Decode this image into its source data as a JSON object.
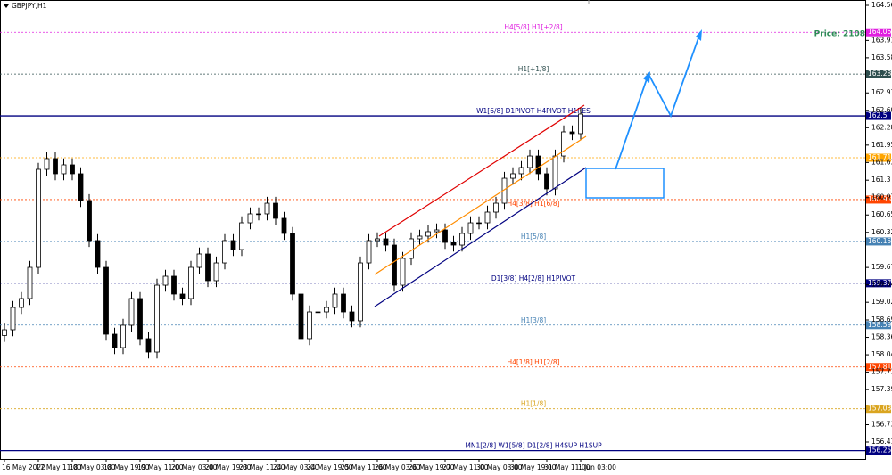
{
  "chart_data": {
    "type": "candlestick",
    "symbol": "GBPJPY,H1",
    "price_note": "Price: 2108",
    "ylim": [
      156.094,
      164.665
    ],
    "yticks": [
      164.565,
      163.91,
      163.585,
      162.93,
      162.605,
      162.28,
      161.955,
      161.63,
      161.3,
      160.975,
      160.65,
      160.325,
      159.67,
      159.345,
      159.02,
      158.69,
      158.365,
      158.04,
      157.715,
      157.39,
      156.735,
      156.41
    ],
    "x_labels": [
      "16 May 2022",
      "17 May 11:00",
      "18 May 03:00",
      "18 May 19:00",
      "19 May 11:00",
      "20 May 03:00",
      "20 May 19:00",
      "23 May 11:00",
      "24 May 03:00",
      "24 May 19:00",
      "25 May 11:00",
      "26 May 03:00",
      "26 May 19:00",
      "27 May 11:00",
      "30 May 03:00",
      "30 May 19:00",
      "31 May 11:00",
      "1 Jun 03:00"
    ],
    "candles": [
      [
        158.4,
        158.627,
        158.28,
        158.507
      ],
      [
        158.507,
        159.043,
        158.387,
        158.923
      ],
      [
        158.923,
        159.21,
        158.803,
        159.09
      ],
      [
        159.09,
        159.792,
        158.97,
        159.672
      ],
      [
        159.672,
        161.623,
        159.552,
        161.503
      ],
      [
        161.503,
        161.823,
        161.383,
        161.703
      ],
      [
        161.703,
        161.823,
        161.3,
        161.42
      ],
      [
        161.42,
        161.706,
        161.3,
        161.586
      ],
      [
        161.586,
        161.706,
        161.3,
        161.42
      ],
      [
        161.42,
        161.54,
        160.8,
        160.92
      ],
      [
        160.92,
        161.04,
        160.052,
        160.172
      ],
      [
        160.172,
        160.292,
        159.552,
        159.672
      ],
      [
        159.672,
        159.792,
        158.304,
        158.424
      ],
      [
        158.424,
        158.544,
        158.054,
        158.174
      ],
      [
        158.174,
        158.711,
        158.054,
        158.591
      ],
      [
        158.591,
        159.21,
        158.471,
        159.09
      ],
      [
        159.09,
        159.21,
        158.221,
        158.341
      ],
      [
        158.341,
        158.461,
        157.971,
        158.091
      ],
      [
        158.091,
        159.459,
        157.971,
        159.339
      ],
      [
        159.339,
        159.626,
        159.219,
        159.506
      ],
      [
        159.506,
        159.626,
        159.053,
        159.173
      ],
      [
        159.173,
        159.293,
        158.97,
        159.09
      ],
      [
        159.09,
        159.792,
        158.97,
        159.672
      ],
      [
        159.672,
        160.042,
        159.552,
        159.922
      ],
      [
        159.922,
        160.042,
        159.303,
        159.423
      ],
      [
        159.423,
        159.875,
        159.303,
        159.755
      ],
      [
        159.755,
        160.292,
        159.635,
        160.172
      ],
      [
        160.172,
        160.292,
        159.885,
        160.005
      ],
      [
        160.005,
        160.624,
        159.885,
        160.504
      ],
      [
        160.504,
        160.791,
        160.384,
        160.671
      ],
      [
        160.671,
        160.791,
        160.551,
        160.671
      ],
      [
        160.671,
        160.99,
        160.551,
        160.87
      ],
      [
        160.87,
        160.99,
        160.468,
        160.588
      ],
      [
        160.588,
        160.708,
        160.185,
        160.305
      ],
      [
        160.305,
        160.425,
        159.053,
        159.173
      ],
      [
        159.173,
        159.293,
        158.221,
        158.341
      ],
      [
        158.341,
        158.96,
        158.221,
        158.84
      ],
      [
        158.84,
        158.96,
        158.72,
        158.84
      ],
      [
        158.84,
        159.043,
        158.72,
        158.923
      ],
      [
        158.923,
        159.293,
        158.803,
        159.173
      ],
      [
        159.173,
        159.293,
        158.72,
        158.84
      ],
      [
        158.84,
        158.96,
        158.554,
        158.674
      ],
      [
        158.674,
        159.875,
        158.554,
        159.755
      ],
      [
        159.755,
        160.292,
        159.635,
        160.172
      ],
      [
        160.172,
        160.325,
        160.052,
        160.205
      ],
      [
        160.205,
        160.325,
        159.968,
        160.088
      ],
      [
        160.088,
        160.208,
        159.219,
        159.339
      ],
      [
        159.339,
        159.959,
        159.219,
        159.839
      ],
      [
        159.839,
        160.325,
        159.719,
        160.205
      ],
      [
        160.205,
        160.375,
        160.085,
        160.255
      ],
      [
        160.255,
        160.458,
        160.135,
        160.338
      ],
      [
        160.338,
        160.491,
        160.218,
        160.371
      ],
      [
        160.371,
        160.491,
        160.018,
        160.138
      ],
      [
        160.138,
        160.258,
        159.968,
        160.088
      ],
      [
        160.088,
        160.425,
        159.968,
        160.305
      ],
      [
        160.305,
        160.624,
        160.185,
        160.504
      ],
      [
        160.504,
        160.624,
        160.384,
        160.504
      ],
      [
        160.504,
        160.824,
        160.384,
        160.704
      ],
      [
        160.704,
        160.99,
        160.584,
        160.87
      ],
      [
        160.87,
        161.456,
        160.75,
        161.336
      ],
      [
        161.336,
        161.54,
        161.216,
        161.42
      ],
      [
        161.42,
        161.656,
        161.3,
        161.536
      ],
      [
        161.536,
        161.872,
        161.416,
        161.752
      ],
      [
        161.752,
        161.872,
        161.3,
        161.42
      ],
      [
        161.42,
        161.54,
        161.017,
        161.137
      ],
      [
        161.137,
        161.872,
        161.017,
        161.752
      ],
      [
        161.752,
        162.322,
        161.632,
        162.202
      ],
      [
        162.202,
        162.322,
        162.049,
        162.169
      ],
      [
        162.169,
        162.655,
        162.049,
        162.535
      ]
    ],
    "levels": [
      {
        "value": 164.062,
        "label": "H4[5/8] H1[+2/8]",
        "color": "#e020e0",
        "line": "dash"
      },
      {
        "value": 163.281,
        "label": "H1[+1/8]",
        "color": "#2f4f4f",
        "line": "dash"
      },
      {
        "value": 162.5,
        "label": "W1[6/8] D1PIVOT H4PIVOT H1RES",
        "color": "#000080",
        "line": "solid"
      },
      {
        "value": 161.719,
        "color": "#ffa500",
        "line": "dash"
      },
      {
        "value": 160.938,
        "label": "H4[3/8] H1[6/8]",
        "color": "#ff4500",
        "line": "dash"
      },
      {
        "value": 160.156,
        "label": "H1[5/8]",
        "color": "#4682b4",
        "line": "dash"
      },
      {
        "value": 159.375,
        "label": "D1[3/8] H4[2/8] H1PIVOT",
        "color": "#000080",
        "line": "dash"
      },
      {
        "value": 158.594,
        "label": "H1[3/8]",
        "color": "#4682b4",
        "line": "dash"
      },
      {
        "value": 157.812,
        "label": "H4[1/8] H1[2/8]",
        "color": "#ff4500",
        "line": "dash"
      },
      {
        "value": 157.031,
        "label": "H1[1/8]",
        "color": "#daa520",
        "line": "dash"
      },
      {
        "value": 156.25,
        "label": "MN1[2/8] W1[5/8] D1[2/8] H4SUP H1SUP",
        "color": "#000080",
        "line": "solid"
      }
    ]
  }
}
